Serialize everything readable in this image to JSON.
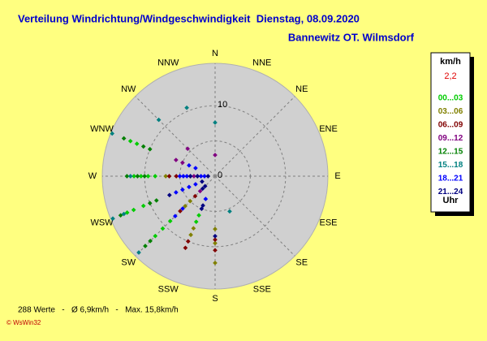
{
  "chart_data": {
    "type": "polar-scatter",
    "title": "Verteilung Windrichtung/Windgeschwindigkeit  Dienstag, 08.09.2020",
    "subtitle": "Bannewitz OT. Wilmsdorf",
    "directions": [
      "N",
      "NNE",
      "NE",
      "ENE",
      "E",
      "ESE",
      "SE",
      "SSE",
      "S",
      "SSW",
      "SW",
      "WSW",
      "W",
      "WNW",
      "NW",
      "NNW"
    ],
    "rlim": [
      0,
      16
    ],
    "rticks": [
      0,
      10
    ],
    "rgrid": [
      5,
      10
    ],
    "legend_title": "km/h",
    "legend_value": "2,2",
    "legend_footer": "Uhr",
    "note": "288 Werte   -   Ø 6,9km/h   -   Max. 15,8km/h",
    "credit": "© WsWin32",
    "series": [
      {
        "name": "00...03",
        "color": "#00cc00",
        "dir": [
          270,
          270,
          270,
          270,
          292.5,
          292.5,
          247.5,
          247.5,
          247.5,
          225,
          225,
          225,
          202.5,
          202.5
        ],
        "speed": [
          8.5,
          9.5,
          10.5,
          11.5,
          12,
          13,
          11,
          12.5,
          13.5,
          9,
          10.5,
          12,
          6,
          7
        ]
      },
      {
        "name": "03...06",
        "color": "#808000",
        "dir": [
          180,
          180,
          180,
          202.5,
          202.5,
          225,
          225,
          270
        ],
        "speed": [
          12.3,
          9.5,
          7.5,
          8,
          9,
          5,
          6,
          7
        ]
      },
      {
        "name": "06...09",
        "color": "#800000",
        "dir": [
          202.5,
          202.5,
          180,
          180,
          225,
          225,
          270,
          270
        ],
        "speed": [
          10,
          11,
          10.5,
          9,
          4,
          7,
          5.5,
          6.5
        ]
      },
      {
        "name": "09...12",
        "color": "#800080",
        "dir": [
          270,
          270,
          270,
          292.5,
          292.5,
          315,
          0,
          225
        ],
        "speed": [
          2.5,
          3,
          3.5,
          6,
          5,
          5.5,
          3,
          3
        ]
      },
      {
        "name": "12...15",
        "color": "#008000",
        "dir": [
          292.5,
          292.5,
          292.5,
          270,
          270,
          270,
          247.5,
          247.5,
          247.5,
          225,
          225
        ],
        "speed": [
          14,
          11,
          10,
          10,
          11,
          12.5,
          9,
          10,
          14.5,
          13,
          14
        ]
      },
      {
        "name": "15...18",
        "color": "#008080",
        "dir": [
          292.5,
          270,
          247.5,
          247.5,
          315,
          337.5,
          0,
          157.5,
          225
        ],
        "speed": [
          15.8,
          12,
          15.7,
          14,
          11.3,
          10.5,
          7.6,
          5.4,
          15.3
        ]
      },
      {
        "name": "18...21",
        "color": "#0000ff",
        "dir": [
          270,
          270,
          270,
          270,
          270,
          247.5,
          247.5,
          247.5,
          247.5,
          225,
          225,
          292.5,
          292.5,
          202.5
        ],
        "speed": [
          1.5,
          2,
          4,
          4.5,
          5,
          3,
          4,
          5,
          6,
          6.5,
          8,
          3,
          4,
          3.5
        ]
      },
      {
        "name": "21...24",
        "color": "#000080",
        "dir": [
          270,
          270,
          270,
          225,
          225,
          247.5,
          247.5,
          202.5,
          202.5,
          180
        ],
        "speed": [
          1,
          2.5,
          3.5,
          2,
          2.5,
          2,
          7,
          4.5,
          5,
          8.5
        ]
      }
    ]
  }
}
